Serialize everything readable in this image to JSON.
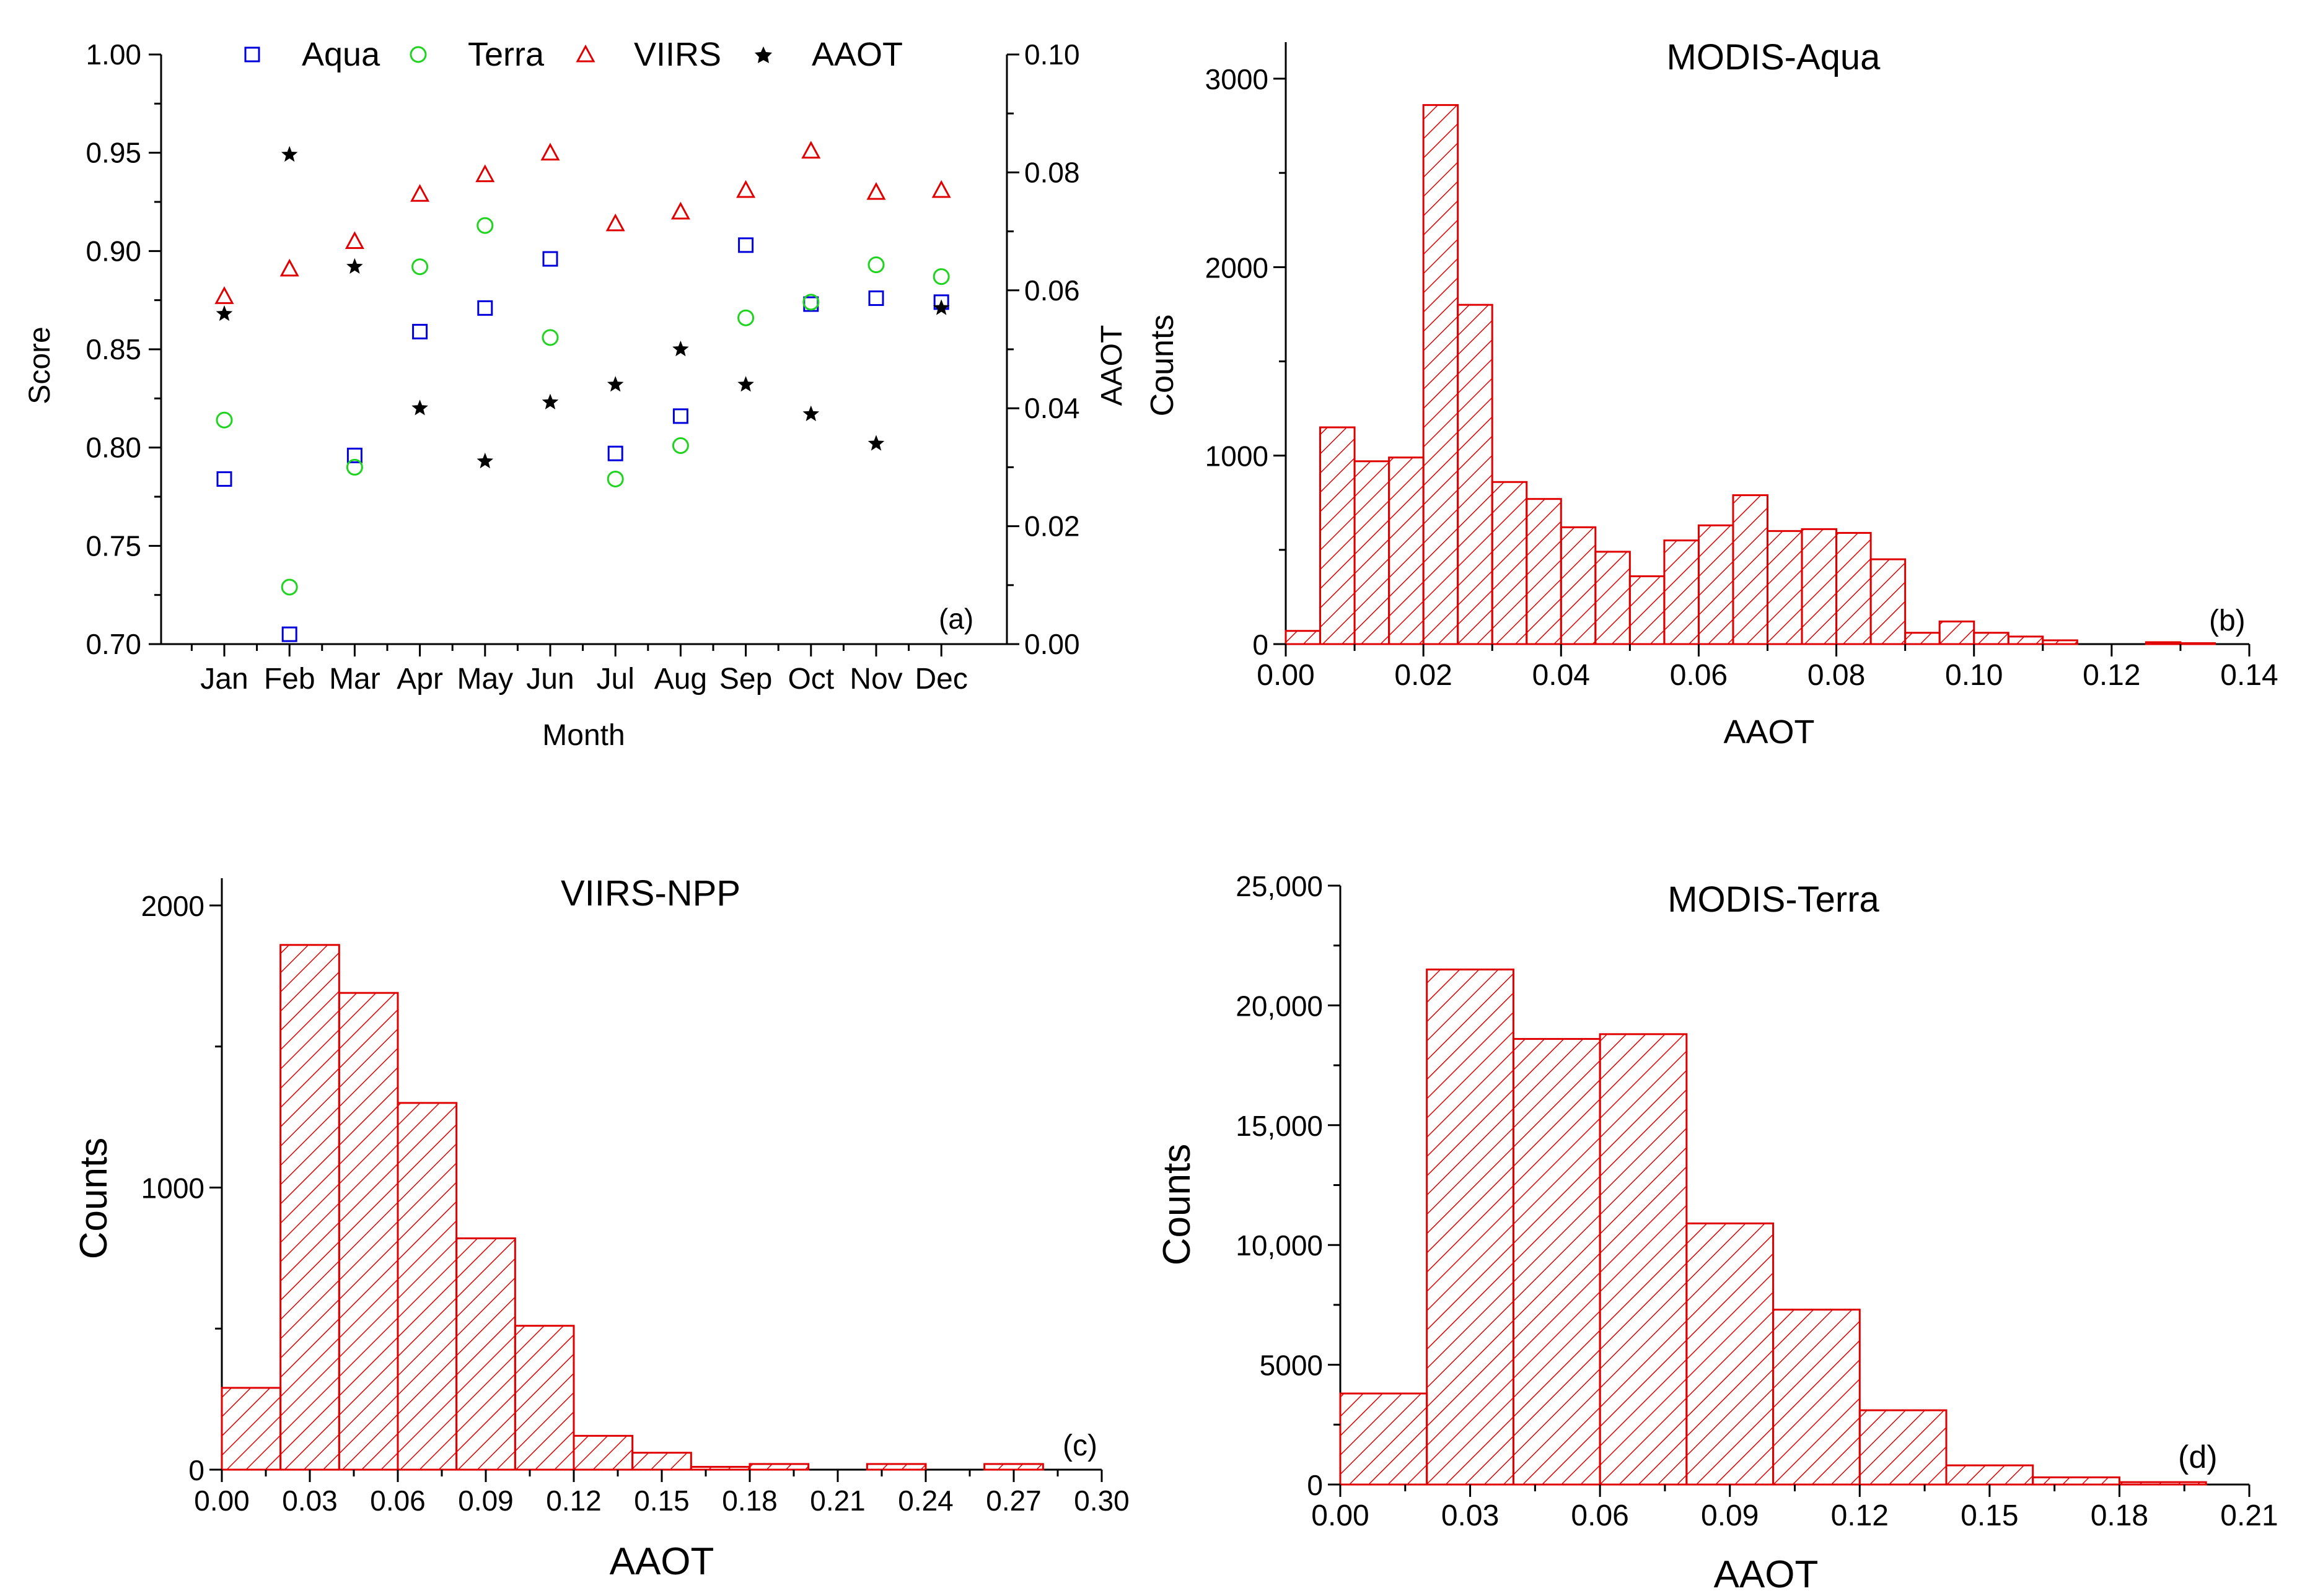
{
  "chart_data": [
    {
      "id": "a",
      "type": "scatter",
      "panel_label": "(a)",
      "title": "",
      "xlabel": "Month",
      "ylabel": "Score",
      "y2label": "AAOT",
      "categories": [
        "Jan",
        "Feb",
        "Mar",
        "Apr",
        "May",
        "Jun",
        "Jul",
        "Aug",
        "Sep",
        "Oct",
        "Nov",
        "Dec"
      ],
      "ylim": [
        0.7,
        1.0
      ],
      "yticks": [
        "0.70",
        "0.75",
        "0.80",
        "0.85",
        "0.90",
        "0.95",
        "1.00"
      ],
      "y2lim": [
        0.0,
        0.1
      ],
      "y2ticks": [
        "0.00",
        "0.02",
        "0.04",
        "0.06",
        "0.08",
        "0.10"
      ],
      "series": [
        {
          "name": "Aqua",
          "marker": "square",
          "color": "#0000dd",
          "axis": "left",
          "values": [
            0.784,
            0.705,
            0.796,
            0.859,
            0.871,
            0.896,
            0.797,
            0.816,
            0.903,
            0.873,
            0.876,
            0.874
          ]
        },
        {
          "name": "Terra",
          "marker": "circle",
          "color": "#1ed41e",
          "axis": "left",
          "values": [
            0.814,
            0.729,
            0.79,
            0.892,
            0.913,
            0.856,
            0.784,
            0.801,
            0.866,
            0.874,
            0.893,
            0.887
          ]
        },
        {
          "name": "VIIRS",
          "marker": "triangle",
          "color": "#e00000",
          "axis": "left",
          "values": [
            0.877,
            0.891,
            0.905,
            0.929,
            0.939,
            0.95,
            0.914,
            0.92,
            0.931,
            0.951,
            0.93,
            0.931
          ]
        },
        {
          "name": "AAOT",
          "marker": "star",
          "color": "#000000",
          "axis": "right",
          "values": [
            0.056,
            0.083,
            0.064,
            0.04,
            0.031,
            0.041,
            0.044,
            0.05,
            0.044,
            0.039,
            0.034,
            0.057
          ]
        }
      ]
    },
    {
      "id": "b",
      "type": "bar",
      "panel_label": "(b)",
      "title": "MODIS-Aqua",
      "xlabel": "AAOT",
      "ylabel": "Counts",
      "xlim": [
        0.0,
        0.14
      ],
      "xticks": [
        "0.00",
        "0.02",
        "0.04",
        "0.06",
        "0.08",
        "0.10",
        "0.12",
        "0.14"
      ],
      "ylim": [
        0,
        3000
      ],
      "yticks": [
        "0",
        "1000",
        "2000",
        "3000"
      ],
      "bin_width": 0.005,
      "values": [
        70,
        1150,
        970,
        990,
        2860,
        1800,
        860,
        770,
        620,
        490,
        360,
        550,
        630,
        790,
        600,
        610,
        590,
        450,
        60,
        120,
        60,
        40,
        20,
        0,
        0,
        10,
        5,
        0
      ]
    },
    {
      "id": "c",
      "type": "bar",
      "panel_label": "(c)",
      "title": "VIIRS-NPP",
      "xlabel": "AAOT",
      "ylabel": "Counts",
      "xlim": [
        0.0,
        0.3
      ],
      "xticks": [
        "0.00",
        "0.03",
        "0.06",
        "0.09",
        "0.12",
        "0.15",
        "0.18",
        "0.21",
        "0.24",
        "0.27",
        "0.30"
      ],
      "ylim": [
        0,
        2000
      ],
      "yticks": [
        "0",
        "1000",
        "2000"
      ],
      "bin_width": 0.02,
      "values": [
        290,
        1860,
        1690,
        1300,
        820,
        510,
        120,
        60,
        10,
        20,
        0,
        20,
        0,
        20,
        0
      ]
    },
    {
      "id": "d",
      "type": "bar",
      "panel_label": "(d)",
      "title": "MODIS-Terra",
      "xlabel": "AAOT",
      "ylabel": "Counts",
      "xlim": [
        0.0,
        0.21
      ],
      "xticks": [
        "0.00",
        "0.03",
        "0.06",
        "0.09",
        "0.12",
        "0.15",
        "0.18",
        "0.21"
      ],
      "ylim": [
        0,
        25000
      ],
      "yticks": [
        "0",
        "5000",
        "10,000",
        "15,000",
        "20,000",
        "25,000"
      ],
      "bin_width": 0.02,
      "values": [
        3800,
        21500,
        18600,
        18800,
        10900,
        7300,
        3100,
        800,
        300,
        100
      ]
    }
  ],
  "colors": {
    "bar_fill": "#ffffff",
    "bar_stroke": "#e00000",
    "axis": "#000000"
  }
}
